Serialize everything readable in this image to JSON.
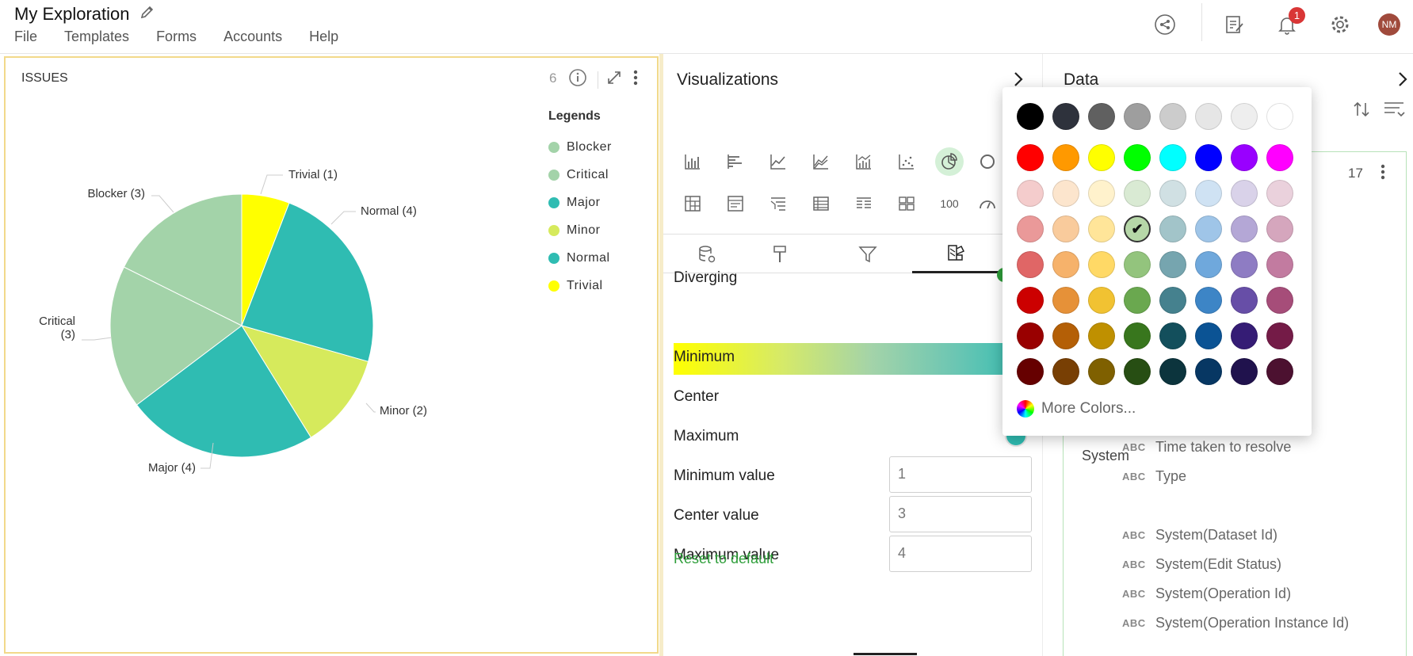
{
  "header": {
    "title": "My Exploration",
    "menu": [
      "File",
      "Templates",
      "Forms",
      "Accounts",
      "Help"
    ],
    "notification_count": "1",
    "avatar_initials": "NM"
  },
  "chart_panel": {
    "title": "ISSUES",
    "count": "6",
    "legend_title": "Legends"
  },
  "chart_data": {
    "type": "pie",
    "title": "ISSUES",
    "legend_title": "Legends",
    "legend_placement": "right",
    "slices": [
      {
        "label": "Trivial",
        "value": 1,
        "color": "#ffff00",
        "callout": "Trivial (1)"
      },
      {
        "label": "Normal",
        "value": 4,
        "color": "#2fbcb2",
        "callout": "Normal (4)"
      },
      {
        "label": "Minor",
        "value": 2,
        "color": "#d6ea5c",
        "callout": "Minor (2)"
      },
      {
        "label": "Major",
        "value": 4,
        "color": "#2fbcb2",
        "callout": "Major (4)"
      },
      {
        "label": "Critical",
        "value": 3,
        "color": "#a3d3a9",
        "callout": "Critical (3)"
      },
      {
        "label": "Blocker",
        "value": 3,
        "color": "#a3d3a9",
        "callout": "Blocker (3)"
      }
    ],
    "legend": [
      {
        "label": "Blocker",
        "color": "#a3d3a9"
      },
      {
        "label": "Critical",
        "color": "#a3d3a9"
      },
      {
        "label": "Major",
        "color": "#2fbcb2"
      },
      {
        "label": "Minor",
        "color": "#d6ea5c"
      },
      {
        "label": "Normal",
        "color": "#2fbcb2"
      },
      {
        "label": "Trivial",
        "color": "#ffff00"
      }
    ]
  },
  "viz_panel": {
    "title": "Visualizations",
    "number_icon_label": "100",
    "color_scale_type": "Diverging",
    "minimum_label": "Minimum",
    "center_label": "Center",
    "maximum_label": "Maximum",
    "center_color": "#a3d3a9",
    "maximum_color": "#2fbcb2",
    "minimum_value_label": "Minimum value",
    "center_value_label": "Center value",
    "maximum_value_label": "Maximum value",
    "minimum_value": "1",
    "center_value": "3",
    "maximum_value": "4",
    "reset_label": "Reset to default"
  },
  "data_panel": {
    "title": "Data",
    "field_count": "17",
    "type_tag": "ABC",
    "fields": [
      "Time taken to resolve",
      "Type"
    ],
    "group": "System",
    "system_fields": [
      "System(Dataset Id)",
      "System(Edit Status)",
      "System(Operation Id)",
      "System(Operation Instance Id)"
    ]
  },
  "color_picker": {
    "rows": [
      [
        "#000000",
        "#2e323c",
        "#606060",
        "#9e9e9e",
        "#cccccc",
        "#e6e6e6",
        "#eeeeee",
        "#ffffff"
      ],
      [
        "#ff0000",
        "#ff9900",
        "#ffff00",
        "#00ff00",
        "#00ffff",
        "#0000ff",
        "#9900ff",
        "#ff00ff"
      ],
      [
        "#f4cccc",
        "#fce5cd",
        "#fff2cc",
        "#d9ead3",
        "#d0e0e3",
        "#cfe2f3",
        "#d9d2e9",
        "#ead1dc"
      ],
      [
        "#ea9999",
        "#f9cb9c",
        "#ffe599",
        "#b6d7a8",
        "#a2c4c9",
        "#9fc5e8",
        "#b4a7d6",
        "#d5a6bd"
      ],
      [
        "#e06666",
        "#f6b26b",
        "#ffd966",
        "#93c47d",
        "#76a5af",
        "#6fa8dc",
        "#8e7cc3",
        "#c27ba0"
      ],
      [
        "#cc0000",
        "#e69138",
        "#f1c232",
        "#6aa84f",
        "#45818e",
        "#3d85c6",
        "#674ea7",
        "#a64d79"
      ],
      [
        "#990000",
        "#b45f06",
        "#bf9000",
        "#38761d",
        "#134f5c",
        "#0b5394",
        "#351c75",
        "#741b47"
      ],
      [
        "#660000",
        "#783f04",
        "#7f6000",
        "#274e13",
        "#0c343d",
        "#073763",
        "#20124d",
        "#4c1130"
      ]
    ],
    "selected": "#b6d7a8",
    "more_colors_label": "More Colors..."
  }
}
